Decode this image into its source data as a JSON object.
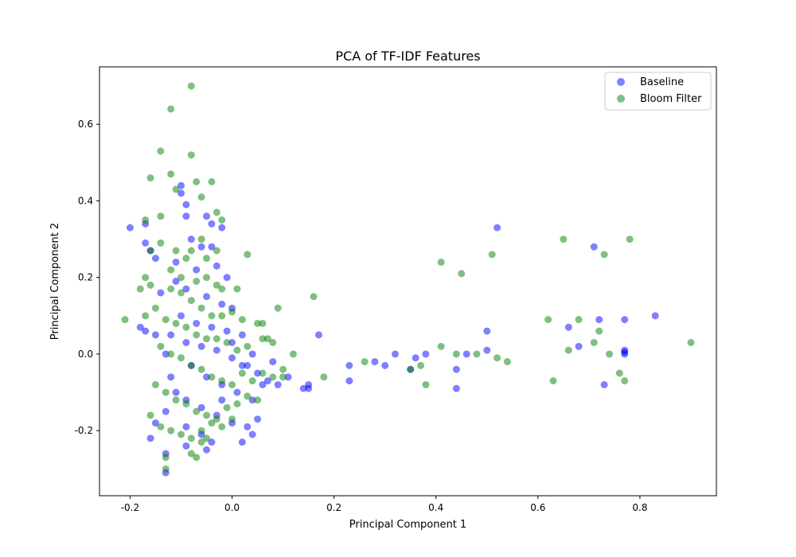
{
  "chart_data": {
    "type": "scatter",
    "title": "PCA of TF-IDF Features",
    "xlabel": "Principal Component 1",
    "ylabel": "Principal Component 2",
    "xlim": [
      -0.26,
      0.95
    ],
    "ylim": [
      -0.37,
      0.75
    ],
    "xticks": [
      "-0.2",
      "0.0",
      "0.2",
      "0.4",
      "0.6",
      "0.8"
    ],
    "xtick_values": [
      -0.2,
      0.0,
      0.2,
      0.4,
      0.6,
      0.8
    ],
    "yticks": [
      "-0.2",
      "0.0",
      "0.2",
      "0.4",
      "0.6"
    ],
    "ytick_values": [
      -0.2,
      0.0,
      0.2,
      0.4,
      0.6
    ],
    "legend_position": "top-right",
    "grid": false,
    "series": [
      {
        "name": "Baseline",
        "color": "#0000ff",
        "points": [
          [
            -0.2,
            0.33
          ],
          [
            -0.17,
            0.34
          ],
          [
            -0.17,
            0.29
          ],
          [
            -0.16,
            0.27
          ],
          [
            -0.15,
            0.25
          ],
          [
            -0.14,
            0.16
          ],
          [
            -0.18,
            0.07
          ],
          [
            -0.17,
            0.06
          ],
          [
            -0.15,
            0.05
          ],
          [
            -0.13,
            0.0
          ],
          [
            -0.12,
            -0.06
          ],
          [
            -0.11,
            -0.1
          ],
          [
            -0.13,
            -0.15
          ],
          [
            -0.15,
            -0.18
          ],
          [
            -0.16,
            -0.22
          ],
          [
            -0.13,
            -0.26
          ],
          [
            -0.13,
            -0.31
          ],
          [
            -0.1,
            0.44
          ],
          [
            -0.1,
            0.42
          ],
          [
            -0.09,
            0.39
          ],
          [
            -0.09,
            0.36
          ],
          [
            -0.05,
            0.36
          ],
          [
            -0.04,
            0.34
          ],
          [
            -0.02,
            0.33
          ],
          [
            -0.08,
            0.3
          ],
          [
            -0.06,
            0.28
          ],
          [
            -0.04,
            0.28
          ],
          [
            -0.11,
            0.24
          ],
          [
            -0.07,
            0.22
          ],
          [
            -0.03,
            0.23
          ],
          [
            -0.01,
            0.2
          ],
          [
            -0.11,
            0.19
          ],
          [
            -0.09,
            0.17
          ],
          [
            -0.05,
            0.15
          ],
          [
            -0.02,
            0.13
          ],
          [
            0.0,
            0.12
          ],
          [
            -0.1,
            0.1
          ],
          [
            -0.07,
            0.08
          ],
          [
            -0.04,
            0.07
          ],
          [
            -0.01,
            0.06
          ],
          [
            0.02,
            0.05
          ],
          [
            -0.12,
            0.05
          ],
          [
            -0.09,
            0.03
          ],
          [
            -0.06,
            0.02
          ],
          [
            -0.03,
            0.01
          ],
          [
            0.0,
            -0.01
          ],
          [
            0.03,
            -0.03
          ],
          [
            0.05,
            -0.05
          ],
          [
            0.07,
            -0.07
          ],
          [
            0.09,
            -0.08
          ],
          [
            0.11,
            -0.06
          ],
          [
            -0.08,
            -0.03
          ],
          [
            -0.05,
            -0.06
          ],
          [
            -0.02,
            -0.08
          ],
          [
            0.01,
            -0.1
          ],
          [
            0.04,
            -0.12
          ],
          [
            -0.09,
            -0.12
          ],
          [
            -0.06,
            -0.14
          ],
          [
            -0.03,
            -0.16
          ],
          [
            0.0,
            -0.18
          ],
          [
            0.03,
            -0.19
          ],
          [
            0.05,
            -0.17
          ],
          [
            -0.09,
            -0.19
          ],
          [
            -0.06,
            -0.21
          ],
          [
            -0.04,
            -0.23
          ],
          [
            0.02,
            -0.23
          ],
          [
            0.04,
            -0.21
          ],
          [
            -0.09,
            -0.24
          ],
          [
            -0.05,
            -0.25
          ],
          [
            -0.02,
            -0.12
          ],
          [
            0.0,
            0.03
          ],
          [
            0.02,
            -0.03
          ],
          [
            0.04,
            0.0
          ],
          [
            0.06,
            -0.08
          ],
          [
            0.08,
            -0.02
          ],
          [
            0.14,
            -0.09
          ],
          [
            0.15,
            -0.09
          ],
          [
            0.15,
            -0.08
          ],
          [
            0.17,
            0.05
          ],
          [
            0.23,
            -0.03
          ],
          [
            0.23,
            -0.07
          ],
          [
            0.28,
            -0.02
          ],
          [
            0.3,
            -0.03
          ],
          [
            0.32,
            0.0
          ],
          [
            0.35,
            -0.04
          ],
          [
            0.36,
            -0.01
          ],
          [
            0.38,
            0.0
          ],
          [
            0.44,
            -0.04
          ],
          [
            0.44,
            -0.09
          ],
          [
            0.46,
            0.0
          ],
          [
            0.5,
            0.06
          ],
          [
            0.5,
            0.01
          ],
          [
            0.52,
            0.33
          ],
          [
            0.66,
            0.07
          ],
          [
            0.68,
            0.02
          ],
          [
            0.71,
            0.28
          ],
          [
            0.72,
            0.09
          ],
          [
            0.73,
            -0.08
          ],
          [
            0.77,
            0.09
          ],
          [
            0.77,
            0.01
          ],
          [
            0.77,
            0.005
          ],
          [
            0.77,
            0.0
          ],
          [
            0.83,
            0.1
          ]
        ]
      },
      {
        "name": "Bloom Filter",
        "color": "#008000",
        "points": [
          [
            -0.21,
            0.09
          ],
          [
            -0.17,
            0.35
          ],
          [
            -0.16,
            0.27
          ],
          [
            -0.18,
            0.17
          ],
          [
            -0.17,
            0.2
          ],
          [
            -0.16,
            0.18
          ],
          [
            -0.17,
            0.1
          ],
          [
            -0.15,
            0.12
          ],
          [
            -0.14,
            0.29
          ],
          [
            -0.14,
            0.36
          ],
          [
            -0.12,
            0.64
          ],
          [
            -0.12,
            0.47
          ],
          [
            -0.11,
            0.43
          ],
          [
            -0.08,
            0.7
          ],
          [
            -0.08,
            0.52
          ],
          [
            -0.14,
            0.53
          ],
          [
            -0.16,
            0.46
          ],
          [
            -0.07,
            0.45
          ],
          [
            -0.06,
            0.41
          ],
          [
            -0.04,
            0.45
          ],
          [
            -0.03,
            0.37
          ],
          [
            -0.02,
            0.35
          ],
          [
            -0.06,
            0.3
          ],
          [
            -0.05,
            0.25
          ],
          [
            -0.03,
            0.27
          ],
          [
            -0.08,
            0.27
          ],
          [
            -0.11,
            0.27
          ],
          [
            -0.09,
            0.25
          ],
          [
            -0.12,
            0.22
          ],
          [
            -0.1,
            0.2
          ],
          [
            -0.07,
            0.19
          ],
          [
            -0.05,
            0.2
          ],
          [
            -0.03,
            0.18
          ],
          [
            -0.02,
            0.17
          ],
          [
            0.01,
            0.17
          ],
          [
            -0.12,
            0.17
          ],
          [
            -0.1,
            0.16
          ],
          [
            -0.08,
            0.14
          ],
          [
            -0.06,
            0.12
          ],
          [
            -0.04,
            0.1
          ],
          [
            -0.02,
            0.1
          ],
          [
            0.0,
            0.11
          ],
          [
            0.02,
            0.09
          ],
          [
            0.03,
            0.26
          ],
          [
            0.05,
            0.08
          ],
          [
            -0.13,
            0.09
          ],
          [
            -0.11,
            0.08
          ],
          [
            -0.09,
            0.07
          ],
          [
            -0.07,
            0.05
          ],
          [
            -0.05,
            0.04
          ],
          [
            -0.03,
            0.04
          ],
          [
            -0.01,
            0.03
          ],
          [
            0.01,
            0.01
          ],
          [
            0.03,
            0.02
          ],
          [
            0.06,
            0.04
          ],
          [
            0.08,
            0.03
          ],
          [
            -0.14,
            0.02
          ],
          [
            -0.12,
            0.0
          ],
          [
            -0.1,
            -0.01
          ],
          [
            -0.08,
            -0.03
          ],
          [
            -0.06,
            -0.04
          ],
          [
            -0.04,
            -0.06
          ],
          [
            -0.02,
            -0.07
          ],
          [
            0.0,
            -0.08
          ],
          [
            0.02,
            -0.05
          ],
          [
            0.04,
            -0.07
          ],
          [
            0.06,
            -0.05
          ],
          [
            0.08,
            -0.06
          ],
          [
            0.1,
            -0.04
          ],
          [
            0.12,
            0.0
          ],
          [
            -0.15,
            -0.08
          ],
          [
            -0.13,
            -0.1
          ],
          [
            -0.11,
            -0.12
          ],
          [
            -0.09,
            -0.13
          ],
          [
            -0.07,
            -0.15
          ],
          [
            -0.05,
            -0.16
          ],
          [
            -0.03,
            -0.17
          ],
          [
            -0.01,
            -0.14
          ],
          [
            0.01,
            -0.13
          ],
          [
            0.03,
            -0.11
          ],
          [
            0.05,
            -0.12
          ],
          [
            -0.16,
            -0.16
          ],
          [
            -0.14,
            -0.19
          ],
          [
            -0.12,
            -0.2
          ],
          [
            -0.1,
            -0.21
          ],
          [
            -0.08,
            -0.22
          ],
          [
            -0.06,
            -0.2
          ],
          [
            -0.04,
            -0.18
          ],
          [
            -0.02,
            -0.19
          ],
          [
            0.0,
            -0.17
          ],
          [
            -0.13,
            -0.27
          ],
          [
            -0.13,
            -0.3
          ],
          [
            -0.08,
            -0.26
          ],
          [
            -0.07,
            -0.27
          ],
          [
            -0.06,
            -0.23
          ],
          [
            -0.05,
            -0.22
          ],
          [
            0.09,
            0.12
          ],
          [
            0.06,
            0.08
          ],
          [
            0.07,
            0.04
          ],
          [
            0.1,
            -0.06
          ],
          [
            0.16,
            0.15
          ],
          [
            0.18,
            -0.06
          ],
          [
            0.26,
            -0.02
          ],
          [
            0.35,
            -0.04
          ],
          [
            0.37,
            -0.03
          ],
          [
            0.38,
            -0.08
          ],
          [
            0.41,
            0.24
          ],
          [
            0.41,
            0.02
          ],
          [
            0.44,
            0.0
          ],
          [
            0.45,
            0.21
          ],
          [
            0.48,
            0.0
          ],
          [
            0.51,
            0.26
          ],
          [
            0.52,
            -0.01
          ],
          [
            0.54,
            -0.02
          ],
          [
            0.62,
            0.09
          ],
          [
            0.63,
            -0.07
          ],
          [
            0.65,
            0.3
          ],
          [
            0.66,
            0.01
          ],
          [
            0.68,
            0.09
          ],
          [
            0.71,
            0.03
          ],
          [
            0.72,
            0.06
          ],
          [
            0.73,
            0.26
          ],
          [
            0.74,
            0.0
          ],
          [
            0.76,
            -0.05
          ],
          [
            0.77,
            -0.07
          ],
          [
            0.78,
            0.3
          ],
          [
            0.9,
            0.03
          ]
        ]
      }
    ]
  }
}
